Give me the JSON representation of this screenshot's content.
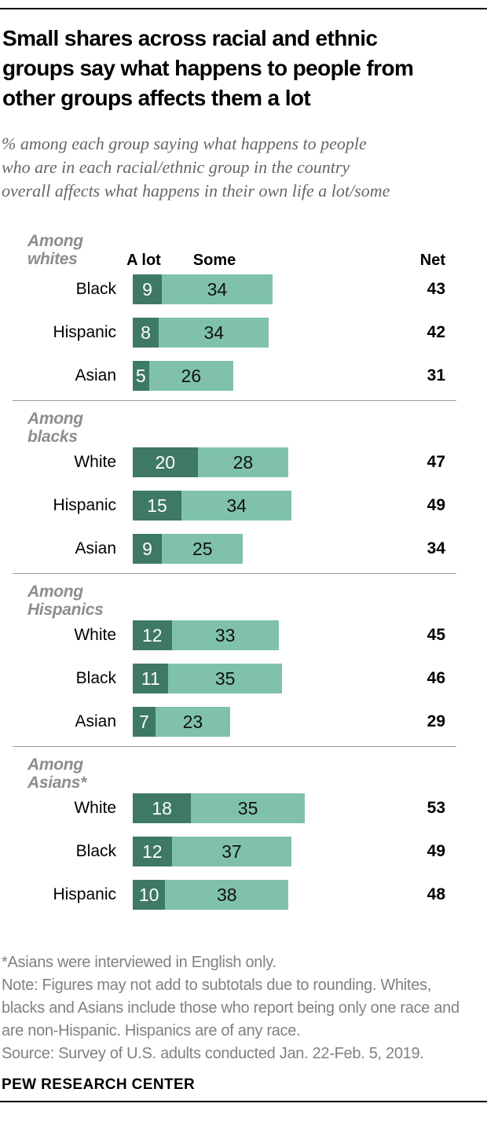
{
  "header": {
    "title_lines": [
      "Small shares across racial and ethnic",
      "groups say what happens to people from",
      "other groups affects them a lot"
    ],
    "subtitle_lines": [
      "% among each group saying what happens to people",
      "who are in each racial/ethnic group in the country",
      "overall affects what happens in their own life a lot/some"
    ]
  },
  "chart_data": {
    "type": "bar",
    "orientation": "horizontal",
    "stacked": true,
    "unit": "%",
    "series_labels": [
      "A lot",
      "Some"
    ],
    "net_label": "Net",
    "axis": {
      "x_min": 0,
      "x_max": 53,
      "gridlines": false
    },
    "colors": {
      "a_lot": "#3e7866",
      "some": "#7fc2a9"
    },
    "sections": [
      {
        "group": "Among whites",
        "rows": [
          {
            "category": "Black",
            "a_lot": 9,
            "some": 34,
            "net": 43
          },
          {
            "category": "Hispanic",
            "a_lot": 8,
            "some": 34,
            "net": 42
          },
          {
            "category": "Asian",
            "a_lot": 5,
            "some": 26,
            "net": 31
          }
        ]
      },
      {
        "group": "Among blacks",
        "rows": [
          {
            "category": "White",
            "a_lot": 20,
            "some": 28,
            "net": 47
          },
          {
            "category": "Hispanic",
            "a_lot": 15,
            "some": 34,
            "net": 49
          },
          {
            "category": "Asian",
            "a_lot": 9,
            "some": 25,
            "net": 34
          }
        ]
      },
      {
        "group": "Among Hispanics",
        "rows": [
          {
            "category": "White",
            "a_lot": 12,
            "some": 33,
            "net": 45
          },
          {
            "category": "Black",
            "a_lot": 11,
            "some": 35,
            "net": 46
          },
          {
            "category": "Asian",
            "a_lot": 7,
            "some": 23,
            "net": 29
          }
        ]
      },
      {
        "group": "Among Asians*",
        "rows": [
          {
            "category": "White",
            "a_lot": 18,
            "some": 35,
            "net": 53
          },
          {
            "category": "Black",
            "a_lot": 12,
            "some": 37,
            "net": 49
          },
          {
            "category": "Hispanic",
            "a_lot": 10,
            "some": 38,
            "net": 48
          }
        ]
      }
    ]
  },
  "footer": {
    "footnote": "*Asians were interviewed in English only.",
    "note_lines": [
      "Note: Figures may not add to subtotals due to rounding. Whites,",
      "blacks and Asians include those who report being only one race and",
      "are non-Hispanic. Hispanics are of any race."
    ],
    "source": "Source: Survey of U.S. adults conducted Jan. 22-Feb. 5, 2019.",
    "branding": "PEW RESEARCH CENTER"
  }
}
